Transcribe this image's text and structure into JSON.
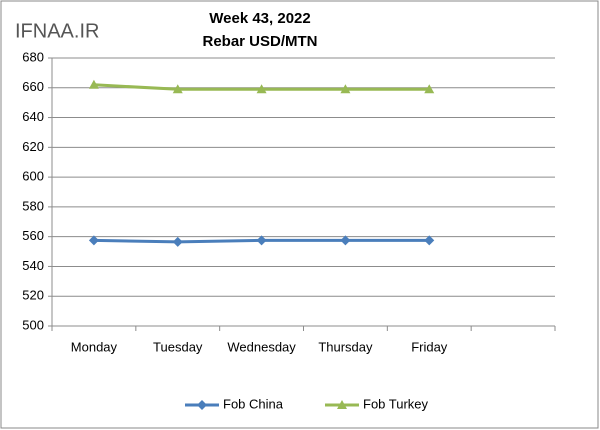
{
  "chart_data": {
    "type": "line",
    "watermark": "IFNAA.IR",
    "title": "Week 43, 2022",
    "subtitle": "Rebar USD/MTN",
    "categories": [
      "Monday",
      "Tuesday",
      "Wednesday",
      "Thursday",
      "Friday",
      null
    ],
    "series": [
      {
        "name": "Fob China",
        "color": "#4a7ebb",
        "marker": "diamond",
        "values": [
          557.5,
          556.5,
          557.5,
          557.5,
          557.5,
          null
        ]
      },
      {
        "name": "Fob Turkey",
        "color": "#98b954",
        "marker": "triangle",
        "values": [
          662,
          659,
          659,
          659,
          659,
          null
        ]
      }
    ],
    "ylim": [
      500,
      680
    ],
    "yticks": [
      500,
      520,
      540,
      560,
      580,
      600,
      620,
      640,
      660,
      680
    ],
    "grid": true,
    "legend": "bottom"
  }
}
